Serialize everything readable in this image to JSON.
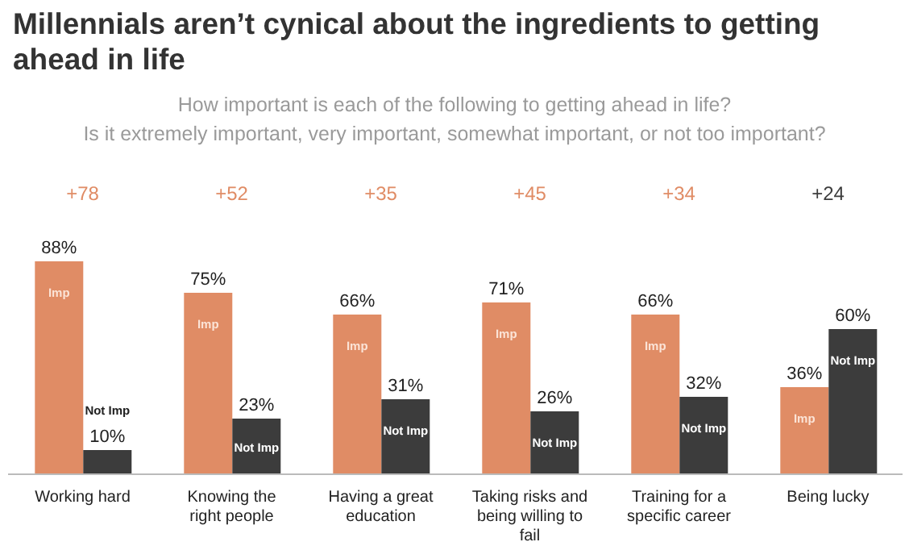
{
  "chart_data": {
    "type": "bar",
    "title": "Millennials aren’t cynical about the ingredients to getting ahead in life",
    "subtitle": "How important is each of the following to getting ahead in life?\nIs it extremely important, very important, somewhat important, or not too important?",
    "categories": [
      "Working hard",
      "Knowing the right people",
      "Having a great education",
      "Taking risks and being willing to fail",
      "Training for a specific career",
      "Being lucky"
    ],
    "series": [
      {
        "name": "Imp",
        "color": "#e08c65",
        "values": [
          88,
          75,
          66,
          71,
          66,
          36
        ],
        "value_labels": [
          "88%",
          "75%",
          "66%",
          "71%",
          "66%",
          "36%"
        ]
      },
      {
        "name": "Not Imp",
        "color": "#3c3c3c",
        "values": [
          10,
          23,
          31,
          26,
          32,
          60
        ],
        "value_labels": [
          "10%",
          "23%",
          "31%",
          "26%",
          "32%",
          "60%"
        ]
      }
    ],
    "annotations": [
      "+78",
      "+52",
      "+35",
      "+45",
      "+34",
      "+24"
    ]
  }
}
